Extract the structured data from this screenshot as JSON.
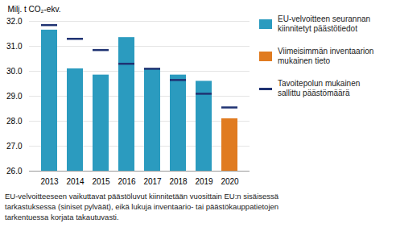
{
  "chart_data": {
    "type": "bar",
    "categories": [
      "2013",
      "2014",
      "2015",
      "2016",
      "2017",
      "2018",
      "2019",
      "2020"
    ],
    "series": [
      {
        "name": "EU-velvoitteen seurannan\nkiinnitetyt päästötiedot",
        "type": "bar",
        "color": "#2b9bbf",
        "values": [
          31.65,
          30.1,
          29.85,
          31.35,
          30.1,
          29.85,
          29.6,
          null
        ]
      },
      {
        "name": "Viimeisimmän inventaarion\nmukainen tieto",
        "type": "bar",
        "color": "#e07b20",
        "values": [
          null,
          null,
          null,
          null,
          null,
          null,
          null,
          28.1
        ]
      },
      {
        "name": "Tavoitepolun mukainen\nsallittu päästömäärä",
        "type": "tick",
        "color": "#1f3272",
        "values": [
          31.85,
          31.3,
          30.85,
          30.3,
          30.1,
          29.65,
          29.1,
          28.55
        ]
      }
    ],
    "y_label": "Milj. t CO₂-ekv.",
    "annotations": [
      "EU-velvoitteeseen vaikuttavat päästöluvut kiinnitetään vuosittain EU:n sisäisessä\ntarkastuksessa (siniset pylväät), eikä lukuja inventaario- tai päästökauppatietojen\ntarkentuessa korjata takautuvasti."
    ],
    "ylim": [
      26,
      32
    ],
    "yticks": [
      26,
      27,
      28,
      29,
      30,
      31,
      32
    ],
    "grid": true,
    "legend": "right"
  }
}
